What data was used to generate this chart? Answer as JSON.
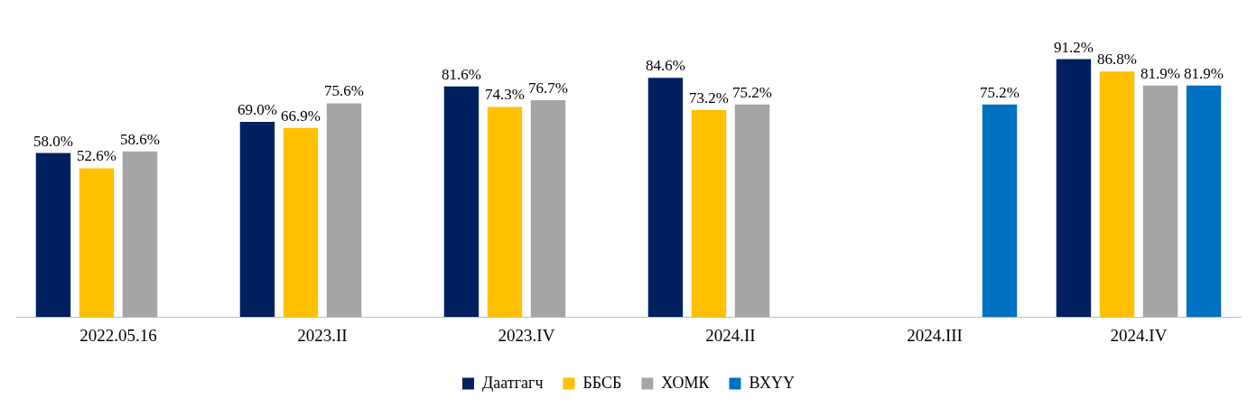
{
  "chart_data": {
    "type": "bar",
    "categories": [
      "2022.05.16",
      "2023.II",
      "2023.IV",
      "2024.II",
      "2024.III",
      "2024.IV"
    ],
    "series": [
      {
        "name": "Даатгагч",
        "color": "#002060",
        "values": [
          58.0,
          69.0,
          81.6,
          84.6,
          null,
          91.2
        ],
        "value_labels": [
          "58.0%",
          "69.0%",
          "81.6%",
          "84.6%",
          null,
          "91.2%"
        ]
      },
      {
        "name": "ББСБ",
        "color": "#ffc000",
        "values": [
          52.6,
          66.9,
          74.3,
          73.2,
          null,
          86.8
        ],
        "value_labels": [
          "52.6%",
          "66.9%",
          "74.3%",
          "73.2%",
          null,
          "86.8%"
        ]
      },
      {
        "name": "ХОМК",
        "color": "#a5a5a5",
        "values": [
          58.6,
          75.6,
          76.7,
          75.2,
          null,
          81.9
        ],
        "value_labels": [
          "58.6%",
          "75.6%",
          "76.7%",
          "75.2%",
          null,
          "81.9%"
        ]
      },
      {
        "name": "ВХҮҮ",
        "color": "#0070c0",
        "values": [
          null,
          null,
          null,
          null,
          75.2,
          81.9
        ],
        "value_labels": [
          null,
          null,
          null,
          null,
          "75.2%",
          "81.9%"
        ]
      }
    ],
    "legend": "bottom",
    "grid": false
  }
}
